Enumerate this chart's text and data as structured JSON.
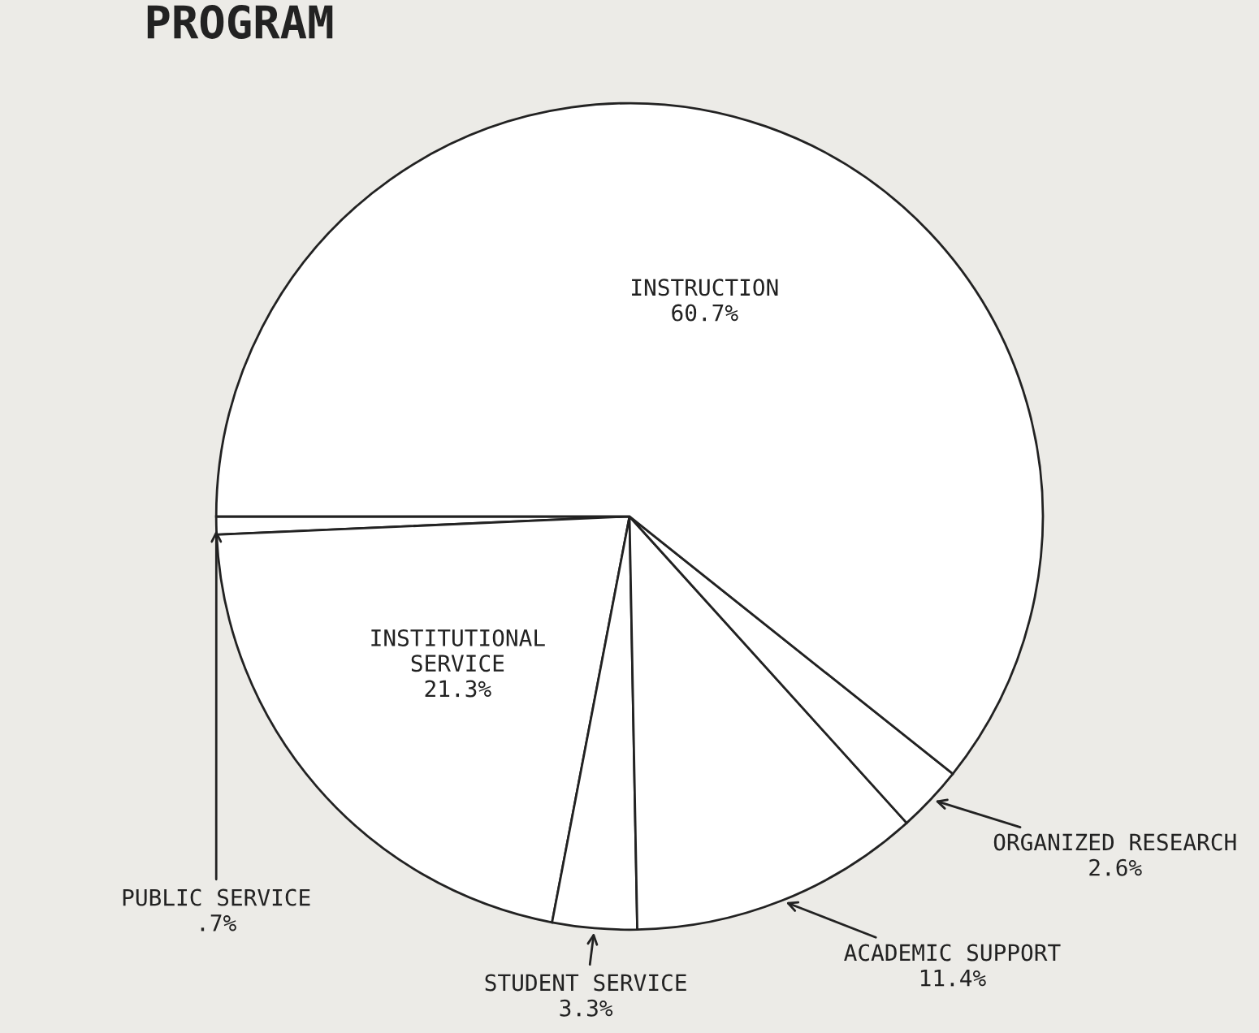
{
  "chart_data": {
    "type": "pie",
    "title": "PROGRAM",
    "categories": [
      "PUBLIC SERVICE",
      "INSTITUTIONAL\nSERVICE",
      "STUDENT SERVICE",
      "ACADEMIC SUPPORT",
      "ORGANIZED RESEARCH",
      "INSTRUCTION"
    ],
    "values": [
      0.7,
      21.3,
      3.3,
      11.4,
      2.6,
      60.7
    ],
    "value_labels": [
      ".7%",
      "21.3%",
      "3.3%",
      "11.4%",
      "2.6%",
      "60.7%"
    ],
    "colors": [
      "#ffffff",
      "#ffffff",
      "#ffffff",
      "#ffffff",
      "#ffffff",
      "#ffffff"
    ]
  }
}
